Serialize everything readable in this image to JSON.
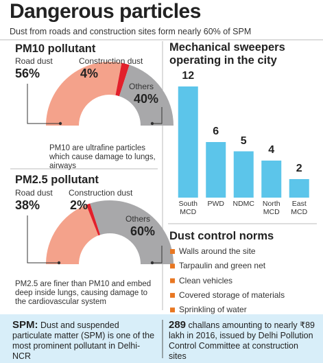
{
  "title": "Dangerous particles",
  "subtitle": "Dust from roads and construction sites form nearly 60% of SPM",
  "chart_data": [
    {
      "type": "pie",
      "title": "PM10 pollutant",
      "categories": [
        "Road dust",
        "Construction dust",
        "Others"
      ],
      "values": [
        56,
        4,
        40
      ],
      "value_labels": [
        "56%",
        "4%",
        "40%"
      ],
      "colors": [
        "#f4a28b",
        "#e2202b",
        "#a8a8aa"
      ],
      "caption": "PM10 are ultrafine particles which cause damage to lungs, airways"
    },
    {
      "type": "pie",
      "title": "PM2.5 pollutant",
      "categories": [
        "Road dust",
        "Construction dust",
        "Others"
      ],
      "values": [
        38,
        2,
        60
      ],
      "value_labels": [
        "38%",
        "2%",
        "60%"
      ],
      "colors": [
        "#f4a28b",
        "#e2202b",
        "#a8a8aa"
      ],
      "caption": "PM2.5 are finer than PM10 and embed deep inside lungs, causing damage to the cardiovascular system"
    },
    {
      "type": "bar",
      "title": "Mechanical sweepers operating in the city",
      "categories": [
        "South MCD",
        "PWD",
        "NDMC",
        "North MCD",
        "East MCD"
      ],
      "values": [
        12,
        6,
        5,
        4,
        2
      ],
      "color": "#5cc5ea"
    }
  ],
  "norms": {
    "title": "Dust control norms",
    "items": [
      "Walls around the site",
      "Tarpaulin and green net",
      "Clean vehicles",
      "Covered storage of materials",
      "Sprinkling of water"
    ]
  },
  "footer": {
    "spm": {
      "term": "SPM:",
      "text": "Dust and suspended particulate matter (SPM) is one of the most prominent pollutant in Delhi-NCR"
    },
    "challans": {
      "number": "289",
      "text": "challans amounting to nearly ₹89 lakh in 2016, issued by Delhi Pollution Control Committee at construction sites"
    }
  }
}
